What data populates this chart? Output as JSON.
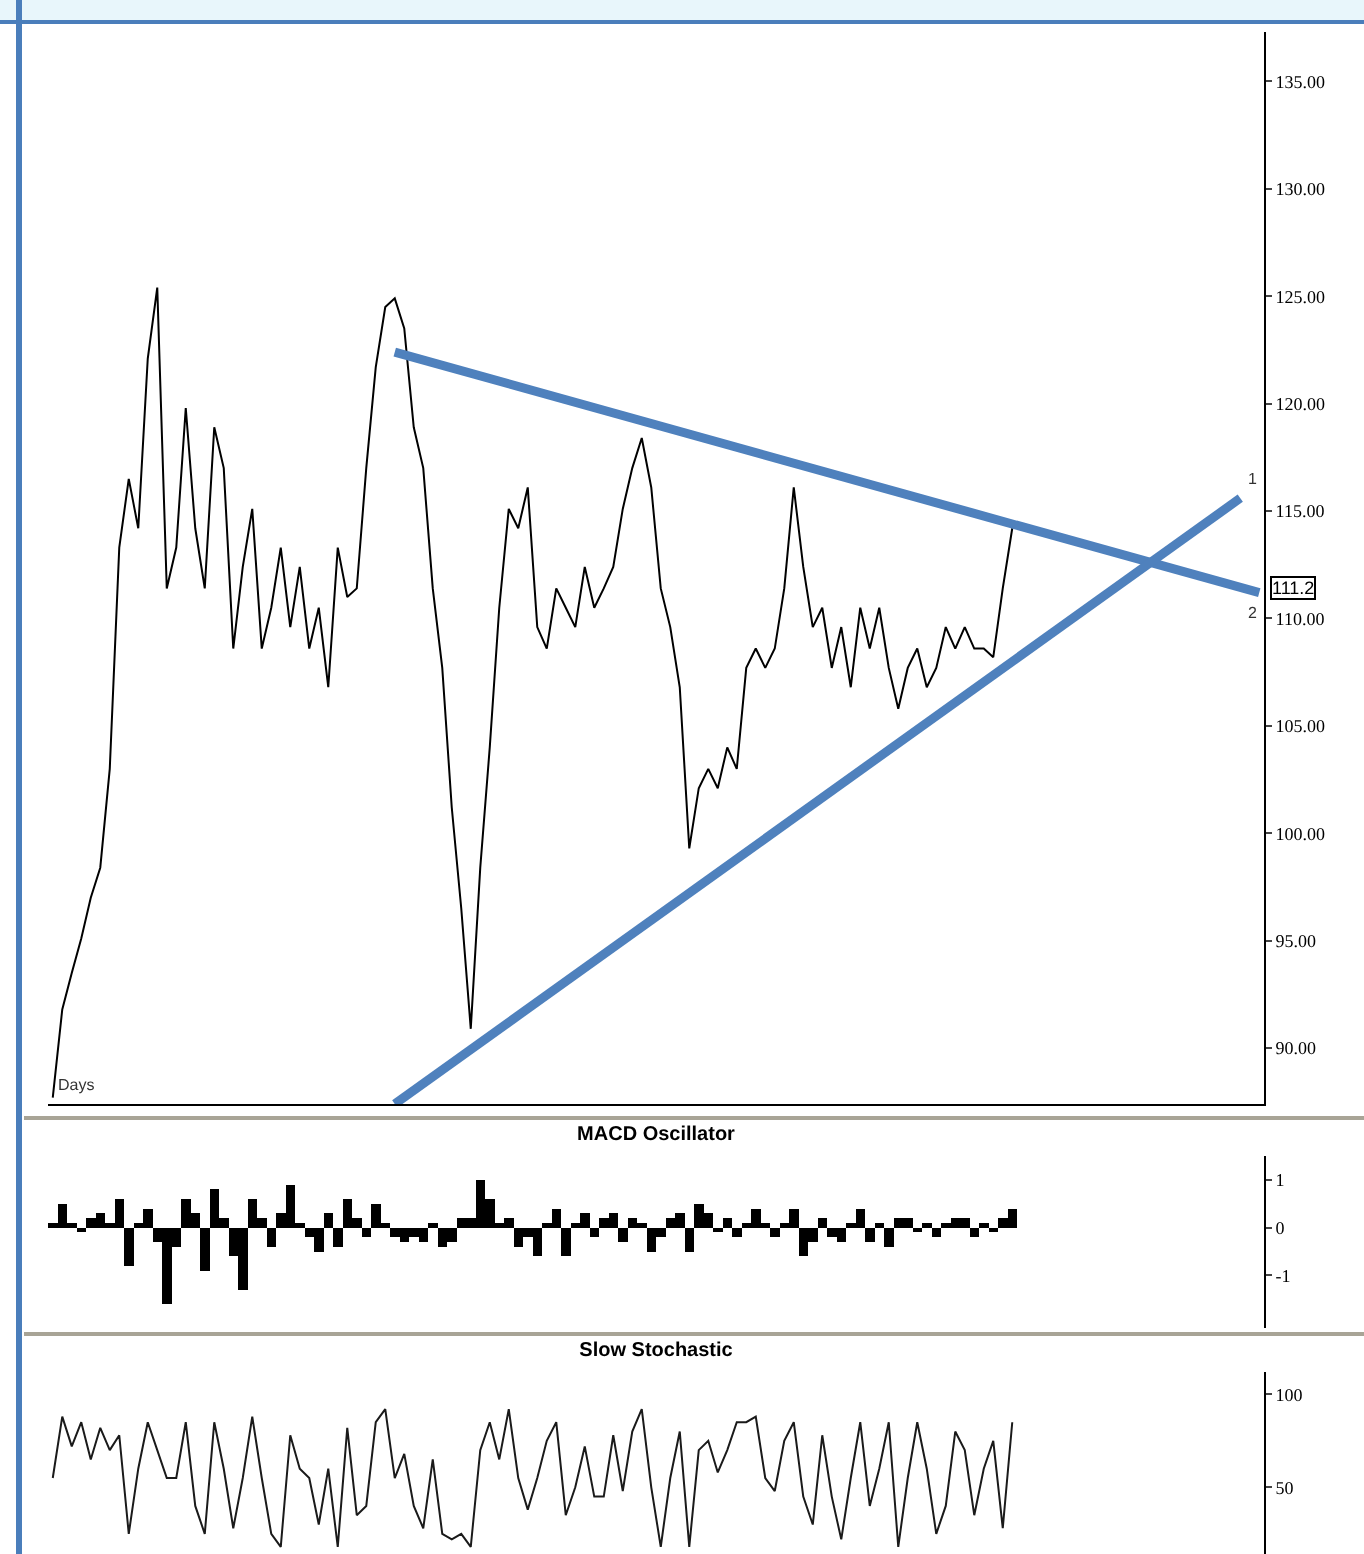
{
  "chart_data": [
    {
      "type": "line",
      "categories": [
        null,
        null,
        null,
        null,
        null,
        null,
        null,
        null,
        null,
        null,
        null,
        null,
        null,
        null,
        null,
        null,
        null,
        null,
        null,
        null,
        null,
        null,
        null,
        null,
        null,
        null,
        null,
        null,
        null,
        null,
        null,
        null,
        null,
        null,
        null,
        null,
        null,
        null,
        null,
        null,
        null,
        null,
        null,
        null,
        null,
        null,
        null,
        null,
        null,
        null,
        null,
        null,
        null,
        null,
        null,
        null,
        null,
        null,
        null,
        null,
        null,
        null,
        null,
        null,
        null,
        null,
        null,
        null,
        null,
        null,
        null,
        null,
        null,
        null,
        null,
        null,
        null,
        null,
        null,
        null,
        null,
        null,
        null,
        null,
        null,
        null,
        null,
        null,
        null,
        null,
        null,
        null,
        null,
        null,
        null,
        null,
        null,
        null,
        null,
        null,
        null,
        null,
        null,
        null,
        null,
        null,
        null,
        null,
        null,
        null,
        null,
        null,
        null,
        null,
        null,
        null,
        null,
        null,
        null,
        null,
        null,
        null,
        null,
        null,
        null,
        null,
        null,
        null
      ],
      "series": [
        {
          "color": "#000000",
          "values": [
            87.7,
            91.8,
            93.5,
            95.1,
            97.0,
            98.4,
            103.0,
            113.3,
            116.5,
            114.2,
            122.1,
            125.4,
            111.4,
            113.3,
            119.8,
            114.2,
            111.4,
            118.9,
            117.0,
            108.6,
            112.4,
            115.1,
            108.6,
            110.5,
            113.3,
            109.6,
            112.4,
            108.6,
            110.5,
            106.8,
            113.3,
            111.0,
            111.4,
            117.0,
            121.7,
            124.5,
            124.9,
            123.5,
            118.9,
            117.0,
            111.4,
            107.7,
            101.2,
            96.5,
            90.9,
            98.4,
            104.0,
            110.5,
            115.1,
            114.2,
            116.1,
            109.6,
            108.6,
            111.4,
            110.5,
            109.6,
            112.4,
            110.5,
            111.4,
            112.4,
            115.1,
            117.0,
            118.4,
            116.1,
            111.4,
            109.6,
            106.8,
            99.3,
            102.1,
            103.0,
            102.1,
            104.0,
            103.0,
            107.7,
            108.6,
            107.7,
            108.6,
            111.4,
            116.1,
            112.4,
            109.6,
            110.5,
            107.7,
            109.6,
            106.8,
            110.5,
            108.6,
            110.5,
            107.7,
            105.8,
            107.7,
            108.6,
            106.8,
            107.7,
            109.6,
            108.6,
            109.6,
            108.6,
            108.6,
            108.2,
            111.4,
            114.2,
            null,
            null,
            null,
            null,
            null,
            null,
            null,
            null,
            null,
            null,
            null,
            null,
            null,
            null,
            null,
            null,
            null,
            null,
            null,
            null,
            null,
            null,
            null,
            null,
            null,
            null
          ]
        },
        {
          "color": "#4f81bd",
          "values": [
            null,
            null,
            null,
            null,
            null,
            null,
            null,
            null,
            null,
            null,
            null,
            null,
            null,
            null,
            null,
            null,
            null,
            null,
            null,
            null,
            null,
            null,
            null,
            null,
            null,
            null,
            null,
            null,
            null,
            null,
            null,
            null,
            null,
            null,
            null,
            null,
            122.4,
            null,
            null,
            null,
            null,
            null,
            null,
            null,
            null,
            null,
            null,
            null,
            null,
            null,
            null,
            null,
            null,
            null,
            null,
            null,
            null,
            null,
            null,
            null,
            null,
            null,
            null,
            null,
            null,
            null,
            null,
            null,
            null,
            null,
            null,
            null,
            null,
            null,
            null,
            null,
            null,
            null,
            null,
            null,
            null,
            null,
            null,
            null,
            null,
            null,
            null,
            null,
            null,
            null,
            null,
            null,
            null,
            null,
            null,
            null,
            null,
            null,
            null,
            null,
            null,
            null,
            null,
            null,
            null,
            null,
            null,
            null,
            null,
            null,
            null,
            null,
            null,
            null,
            null,
            null,
            null,
            null,
            null,
            null,
            null,
            null,
            null,
            null,
            null,
            null,
            null,
            111.2
          ]
        },
        {
          "color": "#4f81bd",
          "values": [
            null,
            null,
            null,
            null,
            null,
            null,
            null,
            null,
            null,
            null,
            null,
            null,
            null,
            null,
            null,
            null,
            null,
            null,
            null,
            null,
            null,
            null,
            null,
            null,
            null,
            null,
            null,
            null,
            null,
            null,
            null,
            null,
            null,
            null,
            null,
            null,
            87.4,
            null,
            null,
            null,
            null,
            null,
            null,
            null,
            null,
            null,
            null,
            null,
            null,
            null,
            null,
            null,
            null,
            null,
            null,
            null,
            null,
            null,
            null,
            null,
            null,
            null,
            null,
            null,
            null,
            null,
            null,
            null,
            null,
            null,
            null,
            null,
            null,
            null,
            null,
            null,
            null,
            null,
            null,
            null,
            null,
            null,
            null,
            null,
            null,
            null,
            null,
            null,
            null,
            null,
            null,
            null,
            null,
            null,
            null,
            null,
            null,
            null,
            null,
            null,
            null,
            null,
            null,
            null,
            null,
            null,
            null,
            null,
            null,
            null,
            null,
            null,
            null,
            null,
            null,
            null,
            null,
            null,
            null,
            null,
            null,
            null,
            null,
            null,
            null,
            115.6,
            null,
            null
          ]
        }
      ],
      "ylim": [
        87.4,
        137.3
      ],
      "yticks": [
        {
          "value": 90,
          "label": "90.00"
        },
        {
          "value": 95,
          "label": "95.00"
        },
        {
          "value": 100,
          "label": "100.00"
        },
        {
          "value": 105,
          "label": "105.00"
        },
        {
          "value": 110,
          "label": "110.00"
        },
        {
          "value": 115,
          "label": "115.00"
        },
        {
          "value": 120,
          "label": "120.00"
        },
        {
          "value": 125,
          "label": "125.00"
        },
        {
          "value": 130,
          "label": "130.00"
        },
        {
          "value": 135,
          "label": "135.00"
        }
      ],
      "tick_labels": "y",
      "annotations": [
        "Days",
        "111.2",
        "1",
        "2"
      ]
    },
    {
      "type": "bar",
      "title": "MACD Oscillator",
      "categories": [
        null,
        null,
        null,
        null,
        null,
        null,
        null,
        null,
        null,
        null,
        null,
        null,
        null,
        null,
        null,
        null,
        null,
        null,
        null,
        null,
        null,
        null,
        null,
        null,
        null,
        null,
        null,
        null,
        null,
        null,
        null,
        null,
        null,
        null,
        null,
        null,
        null,
        null,
        null,
        null,
        null,
        null,
        null,
        null,
        null,
        null,
        null,
        null,
        null,
        null,
        null,
        null,
        null,
        null,
        null,
        null,
        null,
        null,
        null,
        null,
        null,
        null,
        null,
        null,
        null,
        null,
        null,
        null,
        null,
        null,
        null,
        null,
        null,
        null,
        null,
        null,
        null,
        null,
        null,
        null,
        null,
        null,
        null,
        null,
        null,
        null,
        null,
        null,
        null,
        null,
        null,
        null,
        null,
        null,
        null,
        null,
        null,
        null,
        null,
        null,
        null,
        null,
        null,
        null,
        null,
        null,
        null,
        null,
        null,
        null,
        null,
        null,
        null,
        null,
        null,
        null,
        null,
        null,
        null,
        null,
        null,
        null,
        null,
        null,
        null,
        null,
        null,
        null
      ],
      "series": [
        {
          "color": "#000000",
          "values": [
            0.1,
            0.5,
            0.1,
            -0.1,
            0.2,
            0.3,
            0.1,
            0.6,
            -0.8,
            0.1,
            0.4,
            -0.3,
            -1.6,
            -0.4,
            0.6,
            0.3,
            -0.9,
            0.8,
            0.2,
            -0.6,
            -1.3,
            0.6,
            0.2,
            -0.4,
            0.3,
            0.9,
            0.1,
            -0.2,
            -0.5,
            0.3,
            -0.4,
            0.6,
            0.2,
            -0.2,
            0.5,
            0.1,
            -0.2,
            -0.3,
            -0.2,
            -0.3,
            0.1,
            -0.4,
            -0.3,
            0.2,
            0.2,
            1.0,
            0.6,
            0.1,
            0.2,
            -0.4,
            -0.2,
            -0.6,
            0.1,
            0.4,
            -0.6,
            0.1,
            0.3,
            -0.2,
            0.2,
            0.3,
            -0.3,
            0.2,
            0.1,
            -0.5,
            -0.2,
            0.2,
            0.3,
            -0.5,
            0.5,
            0.3,
            -0.1,
            0.2,
            -0.2,
            0.1,
            0.4,
            0.1,
            -0.2,
            0.1,
            0.4,
            -0.6,
            -0.3,
            0.2,
            -0.2,
            -0.3,
            0.1,
            0.4,
            -0.3,
            0.1,
            -0.4,
            0.2,
            0.2,
            -0.1,
            0.1,
            -0.2,
            0.1,
            0.2,
            0.2,
            -0.2,
            0.1,
            -0.1,
            0.2,
            0.4,
            null,
            null,
            null,
            null,
            null,
            null,
            null,
            null,
            null,
            null,
            null,
            null,
            null,
            null,
            null,
            null,
            null,
            null,
            null,
            null,
            null,
            null,
            null,
            null,
            null,
            null
          ]
        }
      ],
      "ylim": [
        -2.1,
        1.5
      ],
      "yticks": [
        -1,
        0,
        1
      ],
      "tick_labels": "y"
    },
    {
      "type": "line",
      "title": "Slow Stochastic",
      "categories": [
        null,
        null,
        null,
        null,
        null,
        null,
        null,
        null,
        null,
        null,
        null,
        null,
        null,
        null,
        null,
        null,
        null,
        null,
        null,
        null,
        null,
        null,
        null,
        null,
        null,
        null,
        null,
        null,
        null,
        null,
        null,
        null,
        null,
        null,
        null,
        null,
        null,
        null,
        null,
        null,
        null,
        null,
        null,
        null,
        null,
        null,
        null,
        null,
        null,
        null,
        null,
        null,
        null,
        null,
        null,
        null,
        null,
        null,
        null,
        null,
        null,
        null,
        null,
        null,
        null,
        null,
        null,
        null,
        null,
        null,
        null,
        null,
        null,
        null,
        null,
        null,
        null,
        null,
        null,
        null,
        null,
        null,
        null,
        null,
        null,
        null,
        null,
        null,
        null,
        null,
        null,
        null,
        null,
        null,
        null,
        null,
        null,
        null,
        null,
        null,
        null,
        null,
        null,
        null,
        null,
        null,
        null,
        null,
        null,
        null,
        null,
        null,
        null,
        null,
        null,
        null,
        null,
        null,
        null,
        null,
        null,
        null,
        null,
        null,
        null,
        null,
        null,
        null
      ],
      "series": [
        {
          "color": "#1a1a1a",
          "values": [
            55,
            88,
            72,
            85,
            65,
            82,
            70,
            78,
            25,
            60,
            85,
            70,
            55,
            55,
            85,
            40,
            25,
            85,
            60,
            28,
            55,
            88,
            55,
            25,
            18,
            78,
            60,
            55,
            30,
            60,
            18,
            82,
            35,
            40,
            85,
            92,
            55,
            68,
            40,
            28,
            65,
            25,
            22,
            25,
            18,
            70,
            85,
            65,
            92,
            55,
            38,
            55,
            75,
            85,
            35,
            50,
            72,
            45,
            45,
            78,
            48,
            80,
            92,
            50,
            18,
            55,
            80,
            18,
            70,
            75,
            58,
            70,
            85,
            85,
            88,
            55,
            48,
            75,
            85,
            45,
            30,
            78,
            45,
            22,
            55,
            85,
            40,
            60,
            85,
            18,
            55,
            85,
            60,
            25,
            40,
            80,
            70,
            35,
            60,
            75,
            28,
            85,
            null,
            null,
            null,
            null,
            null,
            null,
            null,
            null,
            null,
            null,
            null,
            null,
            null,
            null,
            null,
            null,
            null,
            null,
            null,
            null,
            null,
            null,
            null,
            null,
            null,
            null
          ]
        }
      ],
      "ylim": [
        12,
        112
      ],
      "yticks": [
        50,
        100
      ],
      "tick_labels": "y"
    }
  ]
}
